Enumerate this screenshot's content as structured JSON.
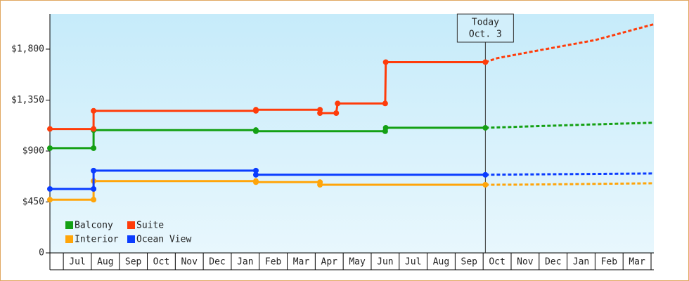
{
  "chart_data": {
    "type": "line",
    "xlim": [
      -0.48,
      21.1
    ],
    "ylim": [
      0,
      2110
    ],
    "yticks": [
      0,
      {
        "value": 450,
        "label": "$450"
      },
      {
        "value": 900,
        "label": "$900"
      },
      {
        "value": 1350,
        "label": "$1,350"
      },
      {
        "value": 1800,
        "label": "$1,800"
      }
    ],
    "xticks": [
      {
        "value": 0.5,
        "label": "Jul"
      },
      {
        "value": 1.5,
        "label": "Aug"
      },
      {
        "value": 2.5,
        "label": "Sep"
      },
      {
        "value": 3.5,
        "label": "Oct"
      },
      {
        "value": 4.5,
        "label": "Nov"
      },
      {
        "value": 5.5,
        "label": "Dec"
      },
      {
        "value": 6.5,
        "label": "Jan"
      },
      {
        "value": 7.5,
        "label": "Feb"
      },
      {
        "value": 8.5,
        "label": "Mar"
      },
      {
        "value": 9.5,
        "label": "Apr"
      },
      {
        "value": 10.5,
        "label": "May"
      },
      {
        "value": 11.5,
        "label": "Jun"
      },
      {
        "value": 12.5,
        "label": "Jul"
      },
      {
        "value": 13.5,
        "label": "Aug"
      },
      {
        "value": 14.5,
        "label": "Sep"
      },
      {
        "value": 15.5,
        "label": "Oct"
      },
      {
        "value": 16.5,
        "label": "Nov"
      },
      {
        "value": 17.5,
        "label": "Dec"
      },
      {
        "value": 18.5,
        "label": "Jan"
      },
      {
        "value": 19.5,
        "label": "Feb"
      },
      {
        "value": 20.5,
        "label": "Mar"
      }
    ],
    "today": {
      "x": 15.08,
      "label": [
        "Today",
        "Oct. 3"
      ]
    },
    "series": [
      {
        "name": "Balcony",
        "color": "#14a014",
        "x": [
          -0.48,
          1.08,
          1.08,
          6.88,
          6.88,
          11.5,
          11.52,
          15.08
        ],
        "values": [
          925,
          925,
          1085,
          1085,
          1075,
          1075,
          1105,
          1105
        ],
        "forecast_x": [
          15.08,
          16,
          18,
          21.1
        ],
        "forecast_values": [
          1105,
          1112,
          1128,
          1150
        ]
      },
      {
        "name": "Suite",
        "color": "#ff3c0a",
        "x": [
          -0.48,
          1.08,
          1.08,
          6.88,
          6.88,
          9.17,
          9.17,
          9.75,
          9.8,
          11.5,
          11.52,
          15.08
        ],
        "values": [
          1095,
          1095,
          1255,
          1255,
          1265,
          1265,
          1235,
          1235,
          1320,
          1320,
          1685,
          1685
        ],
        "forecast_x": [
          15.08,
          15.5,
          17,
          19,
          21.1
        ],
        "forecast_values": [
          1685,
          1720,
          1790,
          1880,
          2020
        ]
      },
      {
        "name": "Interior",
        "color": "#ffa50a",
        "x": [
          -0.48,
          1.08,
          1.08,
          6.88,
          6.88,
          9.17,
          9.17,
          15.08
        ],
        "values": [
          470,
          470,
          635,
          635,
          625,
          625,
          602,
          602
        ],
        "forecast_x": [
          15.08,
          16.4,
          21.1
        ],
        "forecast_values": [
          602,
          603,
          615
        ]
      },
      {
        "name": "Ocean View",
        "color": "#0a3cff",
        "x": [
          -0.48,
          1.08,
          1.08,
          6.88,
          6.88,
          15.08
        ],
        "values": [
          565,
          565,
          727,
          727,
          690,
          690
        ],
        "forecast_x": [
          15.08,
          16.5,
          21.1
        ],
        "forecast_values": [
          690,
          693,
          702
        ]
      }
    ]
  }
}
